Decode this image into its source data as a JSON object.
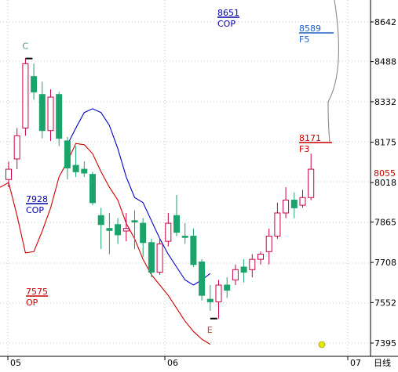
{
  "chart_data": {
    "type": "candlestick",
    "y_axis": {
      "ticks": [
        8642,
        8488,
        8332,
        8175,
        8018,
        7865,
        7708,
        7552,
        7395
      ],
      "range": [
        7380,
        8730
      ],
      "current_price": "8055"
    },
    "x_axis": {
      "ticks": [
        "05",
        "06",
        "07"
      ],
      "period_label": "日线"
    },
    "candles": [
      {
        "o": 8030,
        "c": 8070,
        "h": 8100,
        "l": 8000,
        "dir": "up"
      },
      {
        "o": 8110,
        "c": 8200,
        "h": 8230,
        "l": 8070,
        "dir": "up"
      },
      {
        "o": 8230,
        "c": 8480,
        "h": 8500,
        "l": 8200,
        "dir": "up"
      },
      {
        "o": 8430,
        "c": 8370,
        "h": 8480,
        "l": 8340,
        "dir": "down"
      },
      {
        "o": 8360,
        "c": 8220,
        "h": 8410,
        "l": 8190,
        "dir": "down"
      },
      {
        "o": 8220,
        "c": 8350,
        "h": 8380,
        "l": 8180,
        "dir": "up"
      },
      {
        "o": 8360,
        "c": 8190,
        "h": 8370,
        "l": 8160,
        "dir": "down"
      },
      {
        "o": 8180,
        "c": 8075,
        "h": 8195,
        "l": 8030,
        "dir": "down"
      },
      {
        "o": 8085,
        "c": 8060,
        "h": 8160,
        "l": 8040,
        "dir": "down"
      },
      {
        "o": 8070,
        "c": 8055,
        "h": 8100,
        "l": 8040,
        "dir": "down"
      },
      {
        "o": 8050,
        "c": 7940,
        "h": 8060,
        "l": 7930,
        "dir": "down"
      },
      {
        "o": 7890,
        "c": 7855,
        "h": 7920,
        "l": 7760,
        "dir": "down"
      },
      {
        "o": 7840,
        "c": 7832,
        "h": 7900,
        "l": 7740,
        "dir": "down"
      },
      {
        "o": 7855,
        "c": 7815,
        "h": 7880,
        "l": 7780,
        "dir": "down"
      },
      {
        "o": 7830,
        "c": 7840,
        "h": 7900,
        "l": 7790,
        "dir": "up"
      },
      {
        "o": 7870,
        "c": 7865,
        "h": 7910,
        "l": 7760,
        "dir": "down"
      },
      {
        "o": 7860,
        "c": 7785,
        "h": 7880,
        "l": 7730,
        "dir": "down"
      },
      {
        "o": 7785,
        "c": 7670,
        "h": 7800,
        "l": 7650,
        "dir": "down"
      },
      {
        "o": 7670,
        "c": 7780,
        "h": 7800,
        "l": 7660,
        "dir": "up"
      },
      {
        "o": 7790,
        "c": 7860,
        "h": 7900,
        "l": 7770,
        "dir": "up"
      },
      {
        "o": 7890,
        "c": 7825,
        "h": 7970,
        "l": 7810,
        "dir": "down"
      },
      {
        "o": 7810,
        "c": 7805,
        "h": 7860,
        "l": 7780,
        "dir": "down"
      },
      {
        "o": 7810,
        "c": 7700,
        "h": 7840,
        "l": 7690,
        "dir": "down"
      },
      {
        "o": 7710,
        "c": 7580,
        "h": 7720,
        "l": 7560,
        "dir": "down"
      },
      {
        "o": 7565,
        "c": 7555,
        "h": 7620,
        "l": 7520,
        "dir": "down"
      },
      {
        "o": 7555,
        "c": 7620,
        "h": 7640,
        "l": 7490,
        "dir": "up"
      },
      {
        "o": 7620,
        "c": 7600,
        "h": 7650,
        "l": 7570,
        "dir": "down"
      },
      {
        "o": 7640,
        "c": 7680,
        "h": 7700,
        "l": 7620,
        "dir": "up"
      },
      {
        "o": 7690,
        "c": 7670,
        "h": 7720,
        "l": 7630,
        "dir": "down"
      },
      {
        "o": 7680,
        "c": 7720,
        "h": 7740,
        "l": 7650,
        "dir": "up"
      },
      {
        "o": 7720,
        "c": 7740,
        "h": 7750,
        "l": 7700,
        "dir": "up"
      },
      {
        "o": 7750,
        "c": 7810,
        "h": 7840,
        "l": 7700,
        "dir": "up"
      },
      {
        "o": 7810,
        "c": 7900,
        "h": 7940,
        "l": 7800,
        "dir": "up"
      },
      {
        "o": 7900,
        "c": 7950,
        "h": 8000,
        "l": 7880,
        "dir": "up"
      },
      {
        "o": 7950,
        "c": 7920,
        "h": 7980,
        "l": 7880,
        "dir": "down"
      },
      {
        "o": 7930,
        "c": 7960,
        "h": 7990,
        "l": 7920,
        "dir": "up"
      },
      {
        "o": 7960,
        "c": 8070,
        "h": 8130,
        "l": 7950,
        "dir": "up"
      }
    ],
    "annotations": [
      {
        "label": "C",
        "color": "#4a9a82"
      },
      {
        "label": "E",
        "color": "#cc4444"
      }
    ],
    "levels": [
      {
        "value": "8651",
        "label": "COP",
        "color": "#0000aa"
      },
      {
        "value": "8589",
        "label": "F5",
        "color": "#1f5fc8"
      },
      {
        "value": "8171",
        "label": "F3",
        "color": "#cc0000"
      },
      {
        "value": "7928",
        "label": "COP",
        "color": "#0000aa"
      },
      {
        "value": "7575",
        "label": "OP",
        "color": "#cc0000"
      }
    ],
    "series": [
      {
        "color": "#0000cc",
        "points": [
          [
            7,
            8165
          ],
          [
            8,
            8230
          ],
          [
            9,
            8290
          ],
          [
            10,
            8305
          ],
          [
            11,
            8290
          ],
          [
            12,
            8240
          ],
          [
            13,
            8150
          ],
          [
            14,
            8040
          ],
          [
            15,
            7960
          ],
          [
            16,
            7940
          ],
          [
            17,
            7870
          ],
          [
            18,
            7800
          ],
          [
            19,
            7740
          ],
          [
            20,
            7690
          ],
          [
            21,
            7640
          ],
          [
            22,
            7620
          ],
          [
            23,
            7640
          ],
          [
            24,
            7665
          ]
        ]
      },
      {
        "color": "#cc0000",
        "points": [
          [
            -1,
            8000
          ],
          [
            0,
            8018
          ],
          [
            1,
            7890
          ],
          [
            2,
            7745
          ],
          [
            3,
            7750
          ],
          [
            4,
            7830
          ],
          [
            5,
            7920
          ],
          [
            6,
            8040
          ],
          [
            7,
            8100
          ],
          [
            8,
            8170
          ],
          [
            9,
            8165
          ],
          [
            10,
            8130
          ],
          [
            11,
            8060
          ],
          [
            12,
            8000
          ],
          [
            13,
            7950
          ],
          [
            14,
            7860
          ],
          [
            15,
            7800
          ],
          [
            16,
            7720
          ],
          [
            17,
            7660
          ],
          [
            18,
            7620
          ],
          [
            19,
            7580
          ],
          [
            20,
            7530
          ],
          [
            21,
            7480
          ],
          [
            22,
            7440
          ],
          [
            23,
            7410
          ],
          [
            24,
            7390
          ]
        ]
      },
      {
        "color": "#888888",
        "points": [
          [
            31,
            8750
          ],
          [
            32,
            8600
          ],
          [
            33,
            8400
          ],
          [
            34,
            8171
          ]
        ]
      }
    ],
    "colors": {
      "up": "#cc0044",
      "down": "#1aa36b",
      "grid": "#999999",
      "axis": "#000000",
      "current_price": "#cc0000",
      "marker": "#e6e600"
    }
  }
}
